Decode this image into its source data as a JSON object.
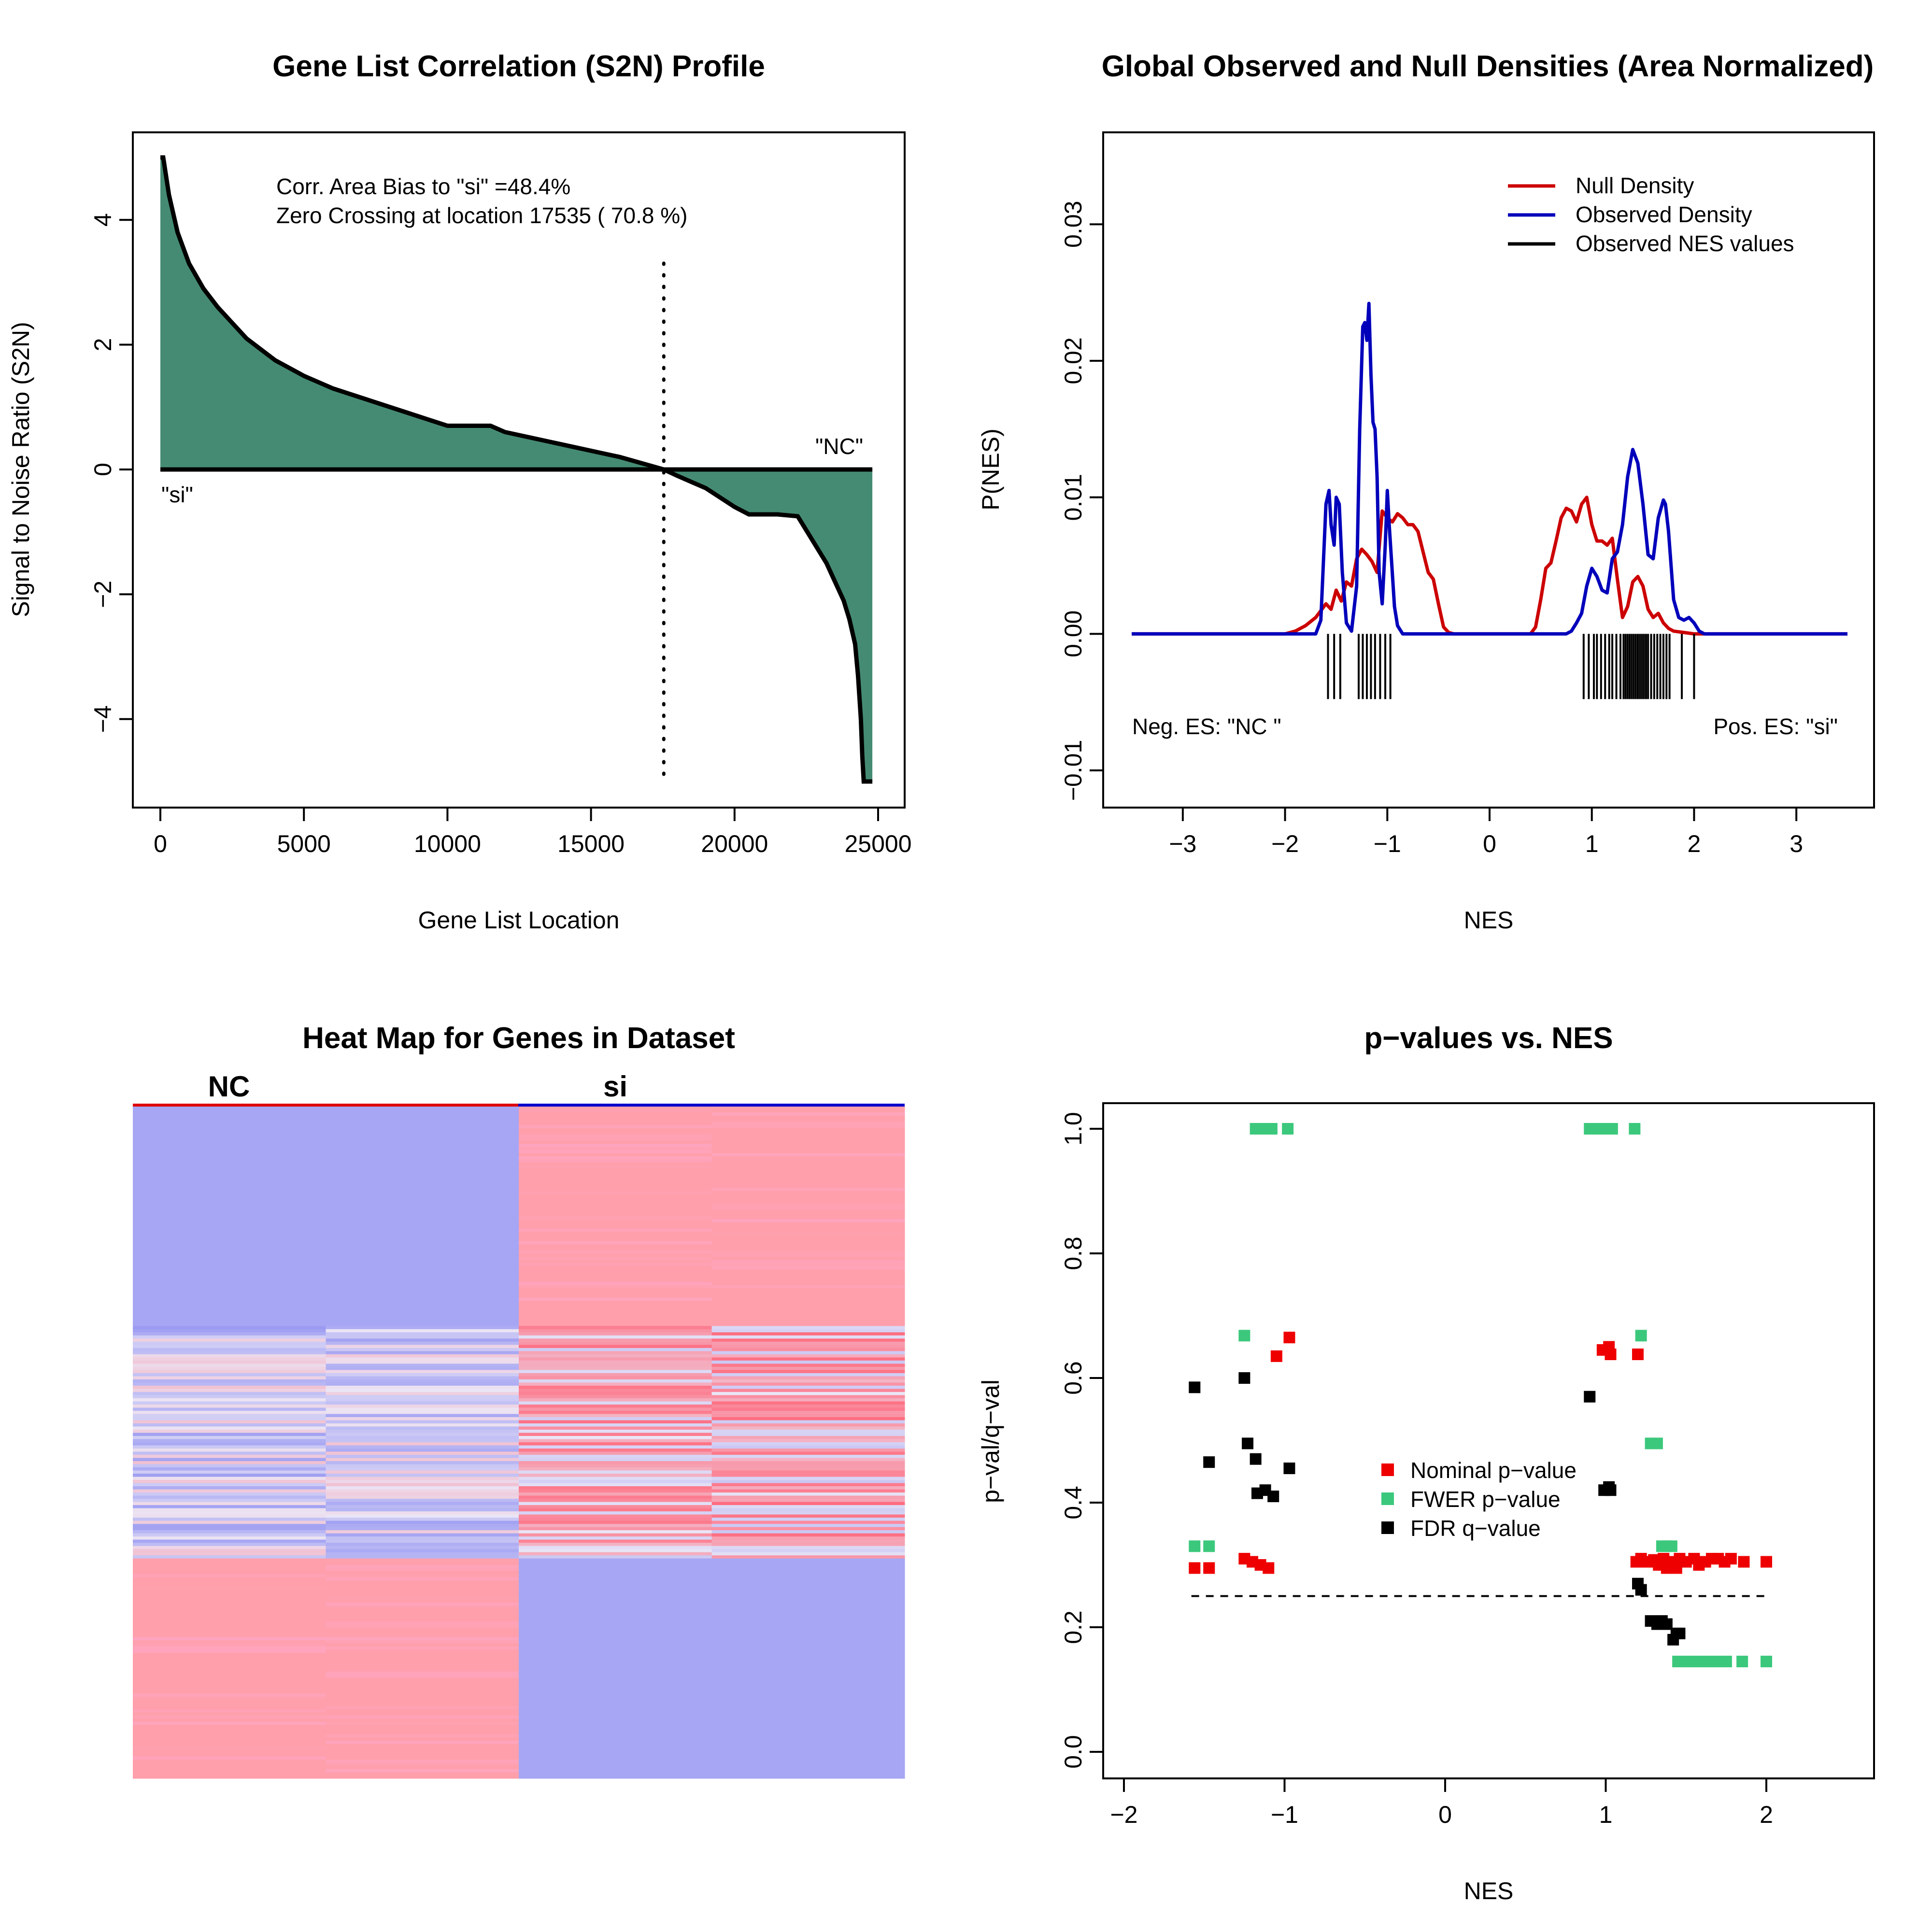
{
  "figure_title": "",
  "chart_data": [
    {
      "id": "s2n",
      "type": "area",
      "title": "Gene List Correlation (S2N) Profile",
      "xlabel": "Gene List Location",
      "ylabel": "Signal to Noise Ratio (S2N)",
      "xlim": [
        0,
        25000
      ],
      "ylim": [
        -5,
        5
      ],
      "xticks": [
        0,
        5000,
        10000,
        15000,
        20000,
        25000
      ],
      "yticks": [
        -4,
        -2,
        0,
        2,
        4
      ],
      "fill_color": "#458B74",
      "x": [
        0,
        100,
        300,
        600,
        1000,
        1500,
        2000,
        2500,
        3000,
        4000,
        5000,
        6000,
        7000,
        8000,
        9000,
        10000,
        11500,
        12000,
        13000,
        14000,
        15000,
        16000,
        17000,
        17535,
        18000,
        18500,
        19000,
        19500,
        20000,
        20500,
        21500,
        22200,
        22800,
        23200,
        23500,
        23800,
        24000,
        24200,
        24300,
        24400,
        24450,
        24500,
        24800
      ],
      "y": [
        5.0,
        5.0,
        4.4,
        3.8,
        3.3,
        2.9,
        2.6,
        2.35,
        2.1,
        1.75,
        1.5,
        1.3,
        1.15,
        1.0,
        0.85,
        0.7,
        0.7,
        0.6,
        0.5,
        0.4,
        0.3,
        0.2,
        0.07,
        0.0,
        -0.1,
        -0.2,
        -0.3,
        -0.45,
        -0.6,
        -0.72,
        -0.72,
        -0.75,
        -1.2,
        -1.5,
        -1.8,
        -2.1,
        -2.4,
        -2.8,
        -3.3,
        -4.0,
        -4.6,
        -5.0,
        -5.0
      ],
      "zero_crossing": 17535,
      "annotations": [
        "Corr. Area Bias to \"si\" =48.4%",
        "Zero Crossing at location  17535  ( 70.8  %)"
      ],
      "label_low": "\"si\"",
      "label_high": "\"NC\""
    },
    {
      "id": "density",
      "type": "line",
      "title": "Global Observed and Null Densities (Area Normalized)",
      "xlabel": "NES",
      "ylabel": "P(NES)",
      "xlim": [
        -3.5,
        3.5
      ],
      "ylim": [
        -0.01,
        0.035
      ],
      "xticks": [
        -3,
        -2,
        -1,
        0,
        1,
        2,
        3
      ],
      "yticks": [
        -0.01,
        0.0,
        0.01,
        0.02,
        0.03
      ],
      "ytick_labels": [
        "−0.01",
        "0.00",
        "0.01",
        "0.02",
        "0.03"
      ],
      "series": [
        {
          "name": "Null Density",
          "color": "#CC0000",
          "x": [
            -3.5,
            -2.0,
            -1.9,
            -1.8,
            -1.7,
            -1.6,
            -1.55,
            -1.5,
            -1.45,
            -1.4,
            -1.35,
            -1.3,
            -1.25,
            -1.2,
            -1.15,
            -1.1,
            -1.05,
            -1.0,
            -0.95,
            -0.9,
            -0.85,
            -0.8,
            -0.75,
            -0.7,
            -0.65,
            -0.6,
            -0.55,
            -0.5,
            -0.45,
            -0.4,
            -0.35,
            -0.3,
            0.4,
            0.45,
            0.5,
            0.55,
            0.6,
            0.65,
            0.7,
            0.75,
            0.8,
            0.85,
            0.9,
            0.95,
            1.0,
            1.05,
            1.1,
            1.15,
            1.2,
            1.25,
            1.3,
            1.35,
            1.4,
            1.45,
            1.5,
            1.55,
            1.6,
            1.65,
            1.7,
            1.75,
            1.8,
            1.9,
            2.0,
            3.5
          ],
          "y": [
            0,
            0,
            0.0002,
            0.0006,
            0.0012,
            0.0022,
            0.0018,
            0.0032,
            0.0024,
            0.0038,
            0.0035,
            0.0055,
            0.0062,
            0.0058,
            0.0053,
            0.0045,
            0.009,
            0.0085,
            0.0082,
            0.0088,
            0.0085,
            0.008,
            0.008,
            0.0075,
            0.006,
            0.0045,
            0.004,
            0.0022,
            0.0005,
            0.0001,
            0,
            0,
            0,
            0.0005,
            0.0025,
            0.0048,
            0.0052,
            0.0068,
            0.0085,
            0.0092,
            0.009,
            0.0082,
            0.0095,
            0.01,
            0.008,
            0.0068,
            0.0068,
            0.0065,
            0.007,
            0.004,
            0.0012,
            0.002,
            0.0038,
            0.0042,
            0.0035,
            0.0018,
            0.0012,
            0.0015,
            0.0008,
            0.0004,
            0.0002,
            0.0001,
            0,
            0
          ]
        },
        {
          "name": "Observed Density",
          "color": "#0000BB",
          "x": [
            -3.5,
            -1.7,
            -1.65,
            -1.6,
            -1.57,
            -1.55,
            -1.52,
            -1.5,
            -1.47,
            -1.44,
            -1.4,
            -1.35,
            -1.3,
            -1.27,
            -1.24,
            -1.22,
            -1.2,
            -1.18,
            -1.16,
            -1.14,
            -1.12,
            -1.1,
            -1.08,
            -1.05,
            -1.02,
            -1.0,
            -0.98,
            -0.96,
            -0.93,
            -0.9,
            -0.85,
            0.75,
            0.8,
            0.85,
            0.9,
            0.95,
            1.0,
            1.05,
            1.1,
            1.15,
            1.2,
            1.25,
            1.3,
            1.35,
            1.4,
            1.45,
            1.5,
            1.55,
            1.6,
            1.65,
            1.7,
            1.72,
            1.75,
            1.8,
            1.85,
            1.9,
            1.95,
            2.0,
            2.05,
            2.1,
            3.5
          ],
          "y": [
            0,
            0,
            0.001,
            0.0095,
            0.0105,
            0.008,
            0.0065,
            0.01,
            0.0095,
            0.0045,
            0.0008,
            0.0002,
            0.0035,
            0.015,
            0.0225,
            0.0228,
            0.0215,
            0.0242,
            0.019,
            0.0155,
            0.015,
            0.0115,
            0.0045,
            0.0022,
            0.0065,
            0.0105,
            0.0078,
            0.0055,
            0.002,
            0.0006,
            0,
            0,
            0.0002,
            0.0008,
            0.0015,
            0.0035,
            0.0048,
            0.0042,
            0.0032,
            0.003,
            0.0055,
            0.006,
            0.008,
            0.0115,
            0.0135,
            0.0125,
            0.0095,
            0.0058,
            0.0055,
            0.0085,
            0.0098,
            0.0095,
            0.0075,
            0.0025,
            0.0012,
            0.001,
            0.0012,
            0.0008,
            0.0002,
            0,
            0
          ]
        }
      ],
      "rug_label": "Observed NES values",
      "rug_color": "#000000",
      "rug_x": [
        -1.58,
        -1.52,
        -1.46,
        -1.28,
        -1.24,
        -1.2,
        -1.16,
        -1.12,
        -1.07,
        -1.02,
        -0.97,
        0.92,
        0.97,
        1.02,
        1.05,
        1.09,
        1.13,
        1.17,
        1.2,
        1.24,
        1.28,
        1.31,
        1.33,
        1.35,
        1.37,
        1.39,
        1.41,
        1.43,
        1.45,
        1.47,
        1.49,
        1.51,
        1.53,
        1.55,
        1.58,
        1.61,
        1.64,
        1.67,
        1.7,
        1.73,
        1.76,
        1.88,
        2.0
      ],
      "neg_label": "Neg. ES: \"NC \"",
      "pos_label": "Pos. ES: \"si\""
    },
    {
      "id": "heatmap",
      "type": "heatmap",
      "title": "Heat Map for Genes in Dataset",
      "columns": [
        "NC",
        "si"
      ],
      "col_colors": [
        "#DD0000",
        "#0000CC"
      ],
      "sample_columns": 4,
      "high_color": "#FF6B7E",
      "low_color": "#9A9AF2",
      "neutral_color": "#EAE6F6",
      "row_blocks": [
        {
          "rows": 70,
          "pattern": [
            "low",
            "low",
            "high",
            "high"
          ]
        },
        {
          "rows": 74,
          "pattern": [
            "mixed",
            "mixed",
            "mixed",
            "mixed"
          ]
        },
        {
          "rows": 70,
          "pattern": [
            "high",
            "high",
            "low",
            "low"
          ]
        }
      ]
    },
    {
      "id": "pvalues",
      "type": "scatter",
      "title": "p−values vs. NES",
      "xlabel": "NES",
      "ylabel": "p−val/q−val",
      "xlim": [
        -2.1,
        2.6
      ],
      "ylim": [
        -0.04,
        1.04
      ],
      "xticks": [
        -2,
        -1,
        0,
        1,
        2
      ],
      "xtick_labels": [
        "−2",
        "−1",
        "0",
        "1",
        "2"
      ],
      "yticks": [
        0.0,
        0.2,
        0.4,
        0.6,
        0.8,
        1.0
      ],
      "ytick_labels": [
        "0.0",
        "0.2",
        "0.4",
        "0.6",
        "0.8",
        "1.0"
      ],
      "threshold": 0.25,
      "threshold_range": [
        -1.58,
        2.0
      ],
      "series": [
        {
          "name": "Nominal p−value",
          "color": "#EE0000",
          "x": [
            -1.56,
            -1.47,
            -1.25,
            -1.2,
            -1.15,
            -1.1,
            -1.05,
            -0.97,
            0.98,
            1.02,
            1.03,
            1.2,
            1.19,
            1.22,
            1.26,
            1.3,
            1.33,
            1.36,
            1.38,
            1.4,
            1.42,
            1.44,
            1.46,
            1.5,
            1.55,
            1.58,
            1.62,
            1.66,
            1.7,
            1.74,
            1.78,
            1.86,
            2.0
          ],
          "y": [
            0.295,
            0.295,
            0.31,
            0.305,
            0.3,
            0.295,
            0.635,
            0.665,
            0.645,
            0.65,
            0.638,
            0.638,
            0.305,
            0.31,
            0.305,
            0.308,
            0.3,
            0.31,
            0.295,
            0.305,
            0.3,
            0.295,
            0.31,
            0.305,
            0.31,
            0.3,
            0.305,
            0.31,
            0.31,
            0.305,
            0.31,
            0.305,
            0.305
          ]
        },
        {
          "name": "FWER p−value",
          "color": "#3CC87C",
          "x": [
            -1.56,
            -1.47,
            -1.25,
            -1.18,
            -1.13,
            -1.08,
            -0.98,
            0.9,
            0.97,
            1.0,
            1.04,
            1.18,
            1.22,
            1.28,
            1.32,
            1.35,
            1.38,
            1.41,
            1.45,
            1.5,
            1.55,
            1.6,
            1.65,
            1.7,
            1.75,
            1.85,
            2.0
          ],
          "y": [
            0.33,
            0.33,
            0.668,
            1.0,
            1.0,
            1.0,
            1.0,
            1.0,
            1.0,
            1.0,
            1.0,
            1.0,
            0.668,
            0.495,
            0.495,
            0.33,
            0.33,
            0.33,
            0.145,
            0.145,
            0.145,
            0.145,
            0.145,
            0.145,
            0.145,
            0.145,
            0.145
          ]
        },
        {
          "name": "FDR q−value",
          "color": "#000000",
          "x": [
            -1.56,
            -1.47,
            -1.25,
            -1.23,
            -1.18,
            -1.17,
            -1.12,
            -1.07,
            -0.97,
            0.9,
            0.99,
            1.02,
            1.03,
            1.2,
            1.22,
            1.28,
            1.32,
            1.35,
            1.38,
            1.42,
            1.44,
            1.46
          ],
          "y": [
            0.585,
            0.465,
            0.6,
            0.495,
            0.47,
            0.415,
            0.42,
            0.41,
            0.455,
            0.57,
            0.42,
            0.425,
            0.42,
            0.27,
            0.26,
            0.21,
            0.205,
            0.21,
            0.205,
            0.18,
            0.19,
            0.19
          ]
        }
      ]
    }
  ]
}
